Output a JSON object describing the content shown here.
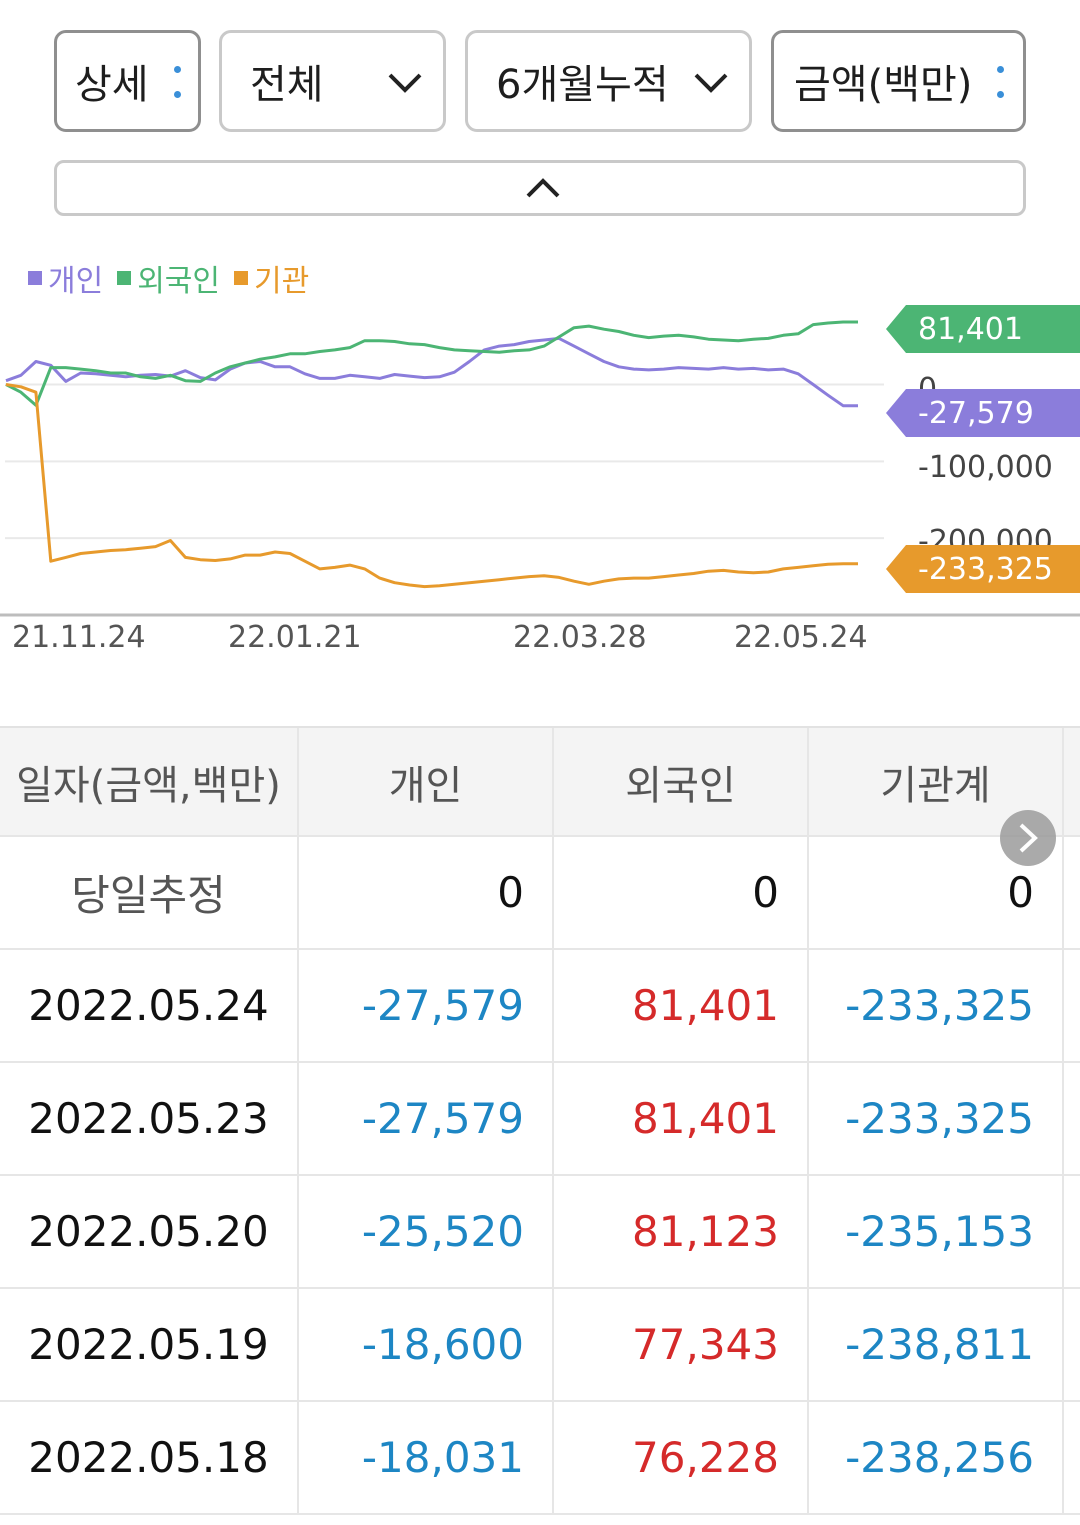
{
  "filters": {
    "detail_label": "상세",
    "scope_label": "전체",
    "period_label": "6개월누적",
    "unit_label": "금액(백만)"
  },
  "legend": {
    "individual": "개인",
    "foreign": "외국인",
    "institution": "기관"
  },
  "colors": {
    "individual": "#8b7ddb",
    "foreign": "#4cb574",
    "institution": "#e79a2c",
    "negative": "#1d86c4",
    "positive": "#d52a2a",
    "kebab_dot": "#3a8fd8"
  },
  "chart_data": {
    "type": "line",
    "x_ticks": [
      "21.11.24",
      "22.01.21",
      "22.03.28",
      "22.05.24"
    ],
    "y_ticks": [
      "0",
      "-100,000",
      "-200,000"
    ],
    "ylim": [
      -300000,
      110000
    ],
    "series": [
      {
        "name": "개인",
        "color": "#8b7ddb",
        "last_label": "-27,579",
        "values": [
          5000,
          12000,
          30000,
          25000,
          4000,
          15000,
          14000,
          12000,
          10000,
          12000,
          13000,
          11000,
          18000,
          9000,
          6000,
          20000,
          28000,
          30000,
          23000,
          23000,
          14000,
          8000,
          8000,
          12000,
          10000,
          8000,
          13000,
          11000,
          9000,
          10000,
          16000,
          30000,
          45000,
          50000,
          52000,
          56000,
          58000,
          60000,
          50000,
          40000,
          30000,
          23000,
          20000,
          19000,
          20000,
          22000,
          21000,
          20000,
          22000,
          20000,
          21000,
          19000,
          20000,
          14000,
          0,
          -14000,
          -27579,
          -27579
        ]
      },
      {
        "name": "외국인",
        "color": "#4cb574",
        "last_label": "81,401",
        "values": [
          0,
          -10000,
          -27000,
          22000,
          22000,
          20000,
          18000,
          15000,
          15000,
          10000,
          8000,
          12000,
          5000,
          4000,
          15000,
          23000,
          28000,
          33000,
          36000,
          40000,
          40000,
          43000,
          45000,
          48000,
          57000,
          57000,
          56000,
          53000,
          52000,
          48000,
          45000,
          44000,
          43000,
          42000,
          44000,
          45000,
          50000,
          62000,
          74000,
          76000,
          72000,
          69000,
          64000,
          61000,
          63000,
          64000,
          62000,
          59000,
          58000,
          57000,
          59000,
          60000,
          64000,
          66000,
          78000,
          80000,
          81401,
          81401
        ]
      },
      {
        "name": "기관",
        "color": "#e79a2c",
        "last_label": "-233,325",
        "values": [
          0,
          -3000,
          -10000,
          -230000,
          -225000,
          -220000,
          -218000,
          -216000,
          -215000,
          -213000,
          -211000,
          -203000,
          -225000,
          -228000,
          -229000,
          -227000,
          -222000,
          -222000,
          -218000,
          -220000,
          -230000,
          -240000,
          -238000,
          -235000,
          -240000,
          -252000,
          -258000,
          -261000,
          -263000,
          -262000,
          -260000,
          -258000,
          -256000,
          -254000,
          -252000,
          -250000,
          -249000,
          -251000,
          -256000,
          -260000,
          -256000,
          -253000,
          -252000,
          -252000,
          -250000,
          -248000,
          -246000,
          -243000,
          -242000,
          -244000,
          -245000,
          -244000,
          -240000,
          -238000,
          -236000,
          -234000,
          -233325,
          -233325
        ]
      }
    ]
  },
  "table": {
    "headers": [
      "일자(금액,백만)",
      "개인",
      "외국인",
      "기관계"
    ],
    "rows": [
      {
        "date": "당일추정",
        "individual": "0",
        "foreign": "0",
        "institution": "0"
      },
      {
        "date": "2022.05.24",
        "individual": "-27,579",
        "foreign": "81,401",
        "institution": "-233,325"
      },
      {
        "date": "2022.05.23",
        "individual": "-27,579",
        "foreign": "81,401",
        "institution": "-233,325"
      },
      {
        "date": "2022.05.20",
        "individual": "-25,520",
        "foreign": "81,123",
        "institution": "-235,153"
      },
      {
        "date": "2022.05.19",
        "individual": "-18,600",
        "foreign": "77,343",
        "institution": "-238,811"
      },
      {
        "date": "2022.05.18",
        "individual": "-18,031",
        "foreign": "76,228",
        "institution": "-238,256"
      }
    ]
  }
}
